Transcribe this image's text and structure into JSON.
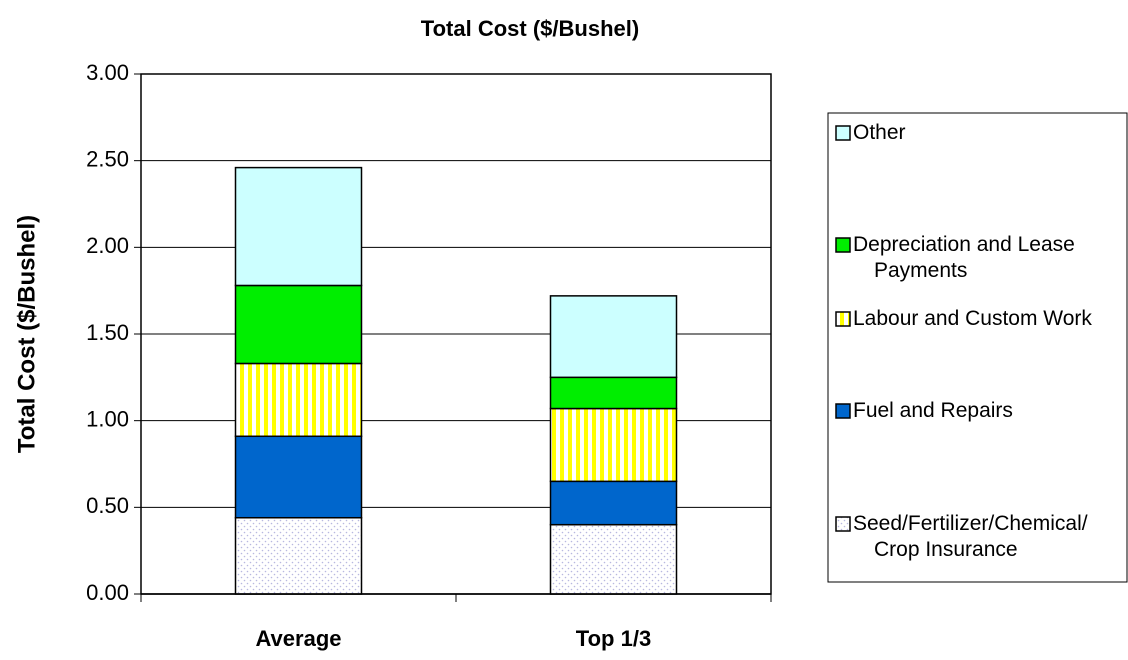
{
  "chart_data": {
    "type": "stacked-bar",
    "title": "Total Cost ($/Bushel)",
    "y_label": "Total Cost ($/Bushel)",
    "categories": [
      "Average",
      "Top 1/3"
    ],
    "series": [
      {
        "name": "Seed/Fertilizer/Chemical/Crop Insurance",
        "color": "#ffffff",
        "pattern": "dots",
        "pattern_color": "#b8b8e0",
        "values": [
          0.44,
          0.4
        ]
      },
      {
        "name": "Fuel and Repairs",
        "color": "#0066cc",
        "values": [
          0.47,
          0.25
        ]
      },
      {
        "name": "Labour and Custom Work",
        "color": "#ffffff",
        "pattern": "vertical-stripes",
        "pattern_color": "#ffff00",
        "values": [
          0.42,
          0.42
        ]
      },
      {
        "name": "Depreciation and Lease Payments",
        "color": "#00ee00",
        "values": [
          0.45,
          0.18
        ]
      },
      {
        "name": "Other",
        "color": "#ccffff",
        "values": [
          0.68,
          0.47
        ]
      }
    ],
    "ylim": [
      0,
      3
    ],
    "yticks": [
      {
        "value": 0,
        "label": "0.00"
      },
      {
        "value": 0.5,
        "label": "0.50"
      },
      {
        "value": 1,
        "label": "1.00"
      },
      {
        "value": 1.5,
        "label": "1.50"
      },
      {
        "value": 2,
        "label": "2.00"
      },
      {
        "value": 2.5,
        "label": "2.50"
      },
      {
        "value": 3,
        "label": "3.00"
      }
    ],
    "grid": true,
    "legend": "right"
  }
}
